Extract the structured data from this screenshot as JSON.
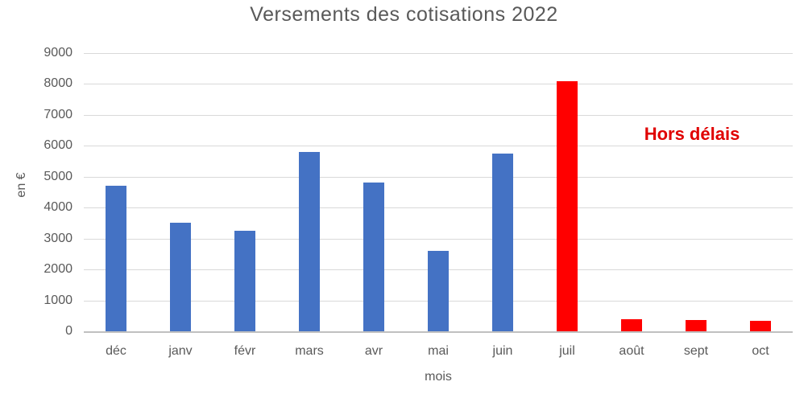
{
  "chart_data": {
    "type": "bar",
    "title": "Versements des cotisations 2022",
    "xlabel": "mois",
    "ylabel": "en €",
    "categories": [
      "déc",
      "janv",
      "févr",
      "mars",
      "avr",
      "mai",
      "juin",
      "juil",
      "août",
      "sept",
      "oct"
    ],
    "values": [
      4700,
      3500,
      3250,
      5800,
      4800,
      2600,
      5750,
      8100,
      400,
      375,
      340
    ],
    "bar_colors": [
      "#4472c4",
      "#4472c4",
      "#4472c4",
      "#4472c4",
      "#4472c4",
      "#4472c4",
      "#4472c4",
      "#ff0000",
      "#ff0000",
      "#ff0000",
      "#ff0000"
    ],
    "ylim": [
      0,
      9000
    ],
    "ytick_step": 1000,
    "ytick_labels": [
      "0",
      "1000",
      "2000",
      "3000",
      "4000",
      "5000",
      "6000",
      "7000",
      "8000",
      "9000"
    ],
    "grid": true,
    "legend": "none",
    "annotation": {
      "text": "Hors délais",
      "color": "#e00000"
    },
    "colors": {
      "on_time_bar": "#4472c4",
      "late_bar": "#ff0000",
      "gridline": "#d9d9d9",
      "axis_line": "#c0c0c0",
      "text": "#595959"
    }
  }
}
